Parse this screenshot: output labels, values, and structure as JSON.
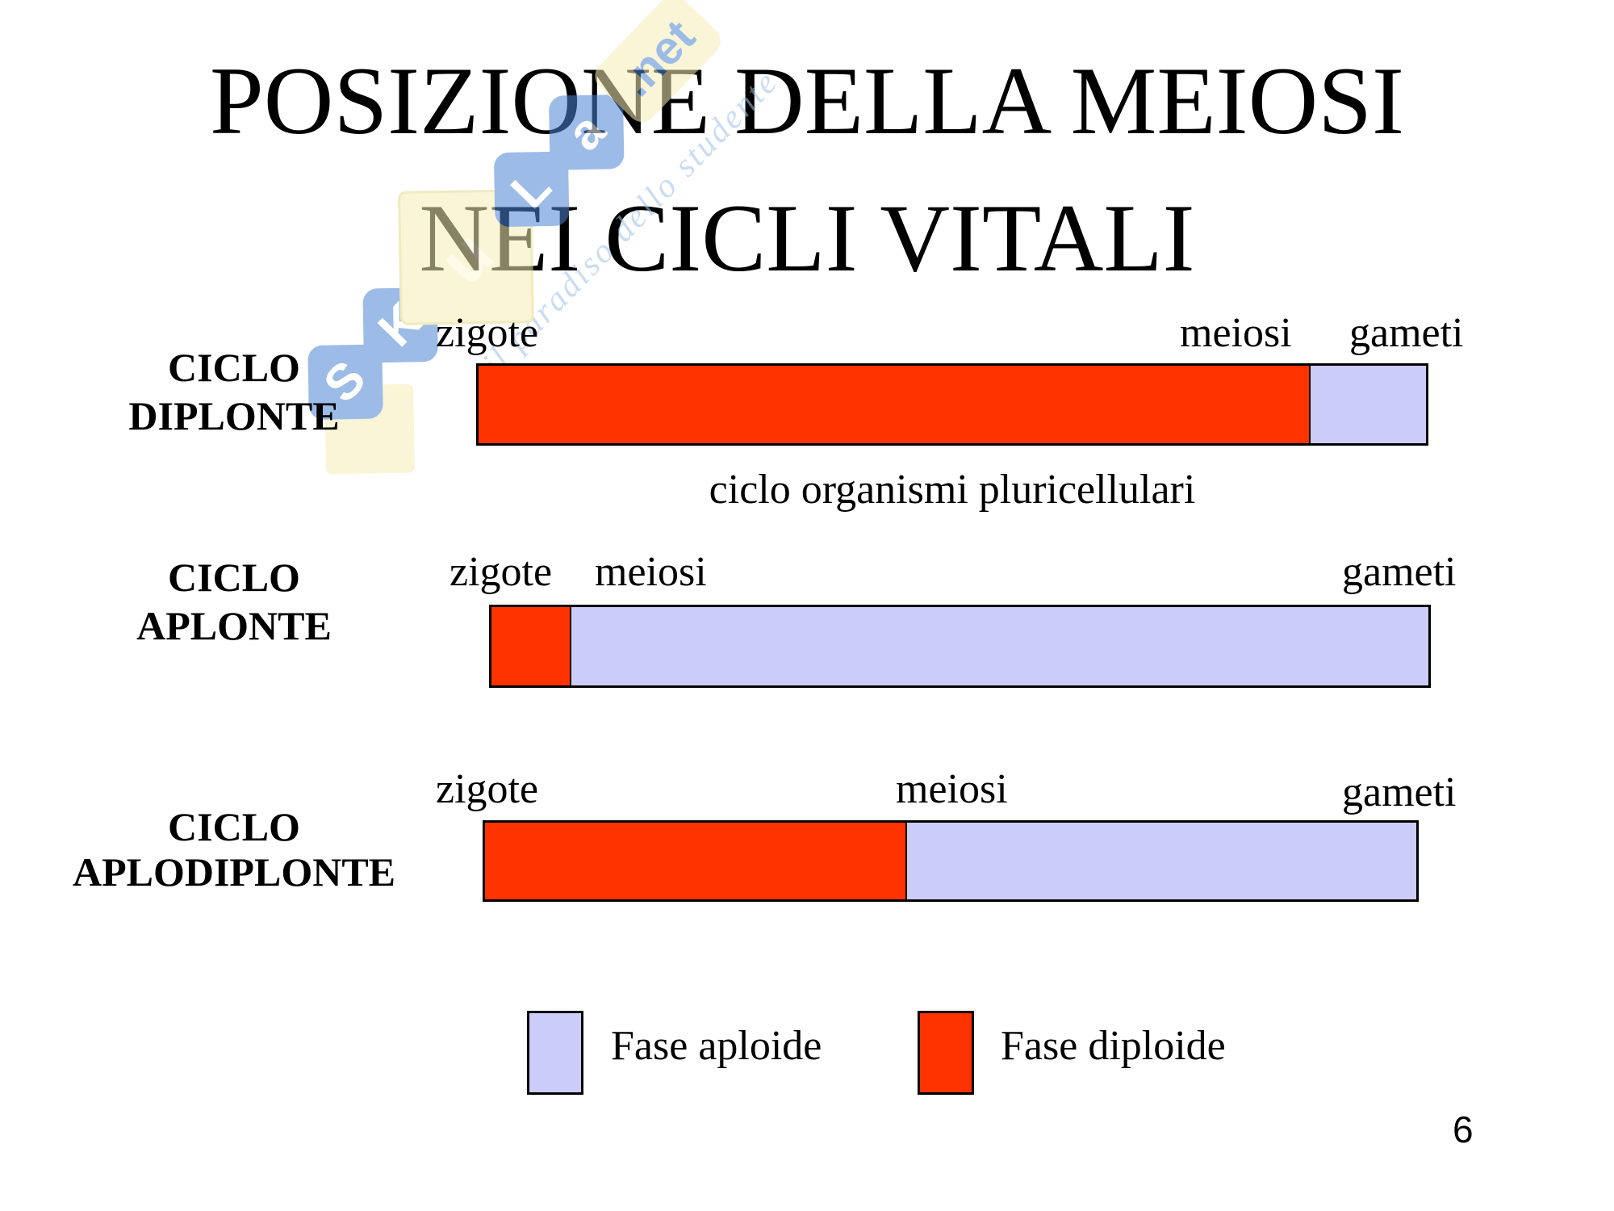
{
  "slide": {
    "title_line1": "POSIZIONE DELLA MEIOSI",
    "title_line2": "NEI CICLI VITALI",
    "page_number": "6"
  },
  "watermark": {
    "tiles": [
      "S",
      "K",
      "u",
      "L",
      "a"
    ],
    "suffix": ".net",
    "tagline": "il paradiso dello studente"
  },
  "diagram": {
    "rows": [
      {
        "name_line1": "CICLO",
        "name_line2": "DIPLONTE",
        "label_zygote": "zigote",
        "label_meiosis": "meiosi",
        "label_gametes": "gameti",
        "caption": "ciclo organismi pluricellulari",
        "diploid_width": "87.8%",
        "haploid_width": "12.2%"
      },
      {
        "name_line1": "CICLO",
        "name_line2": "APLONTE",
        "label_zygote": "zigote",
        "label_meiosis": "meiosi",
        "label_gametes": "gameti",
        "caption": "",
        "diploid_width": "8.5%",
        "haploid_width": "91.5%"
      },
      {
        "name_line1": "CICLO",
        "name_line2": "APLODIPLONTE",
        "label_zygote": "zigote",
        "label_meiosis": "meiosi",
        "label_gametes": "gameti",
        "caption": "",
        "diploid_width": "45.3%",
        "haploid_width": "54.7%"
      }
    ],
    "legend": [
      {
        "label": "Fase aploide",
        "color": "#ccccf8"
      },
      {
        "label": "Fase diploide",
        "color": "#ff3300"
      }
    ]
  },
  "colors": {
    "diploid_red": "#ff3300",
    "haploid_lavender": "#ccccf8",
    "bar_border": "#000000",
    "watermark_blue": "#4d86d4",
    "watermark_yellow": "#f5edb5",
    "watermark_tagline_blue": "#9fc0e8"
  }
}
